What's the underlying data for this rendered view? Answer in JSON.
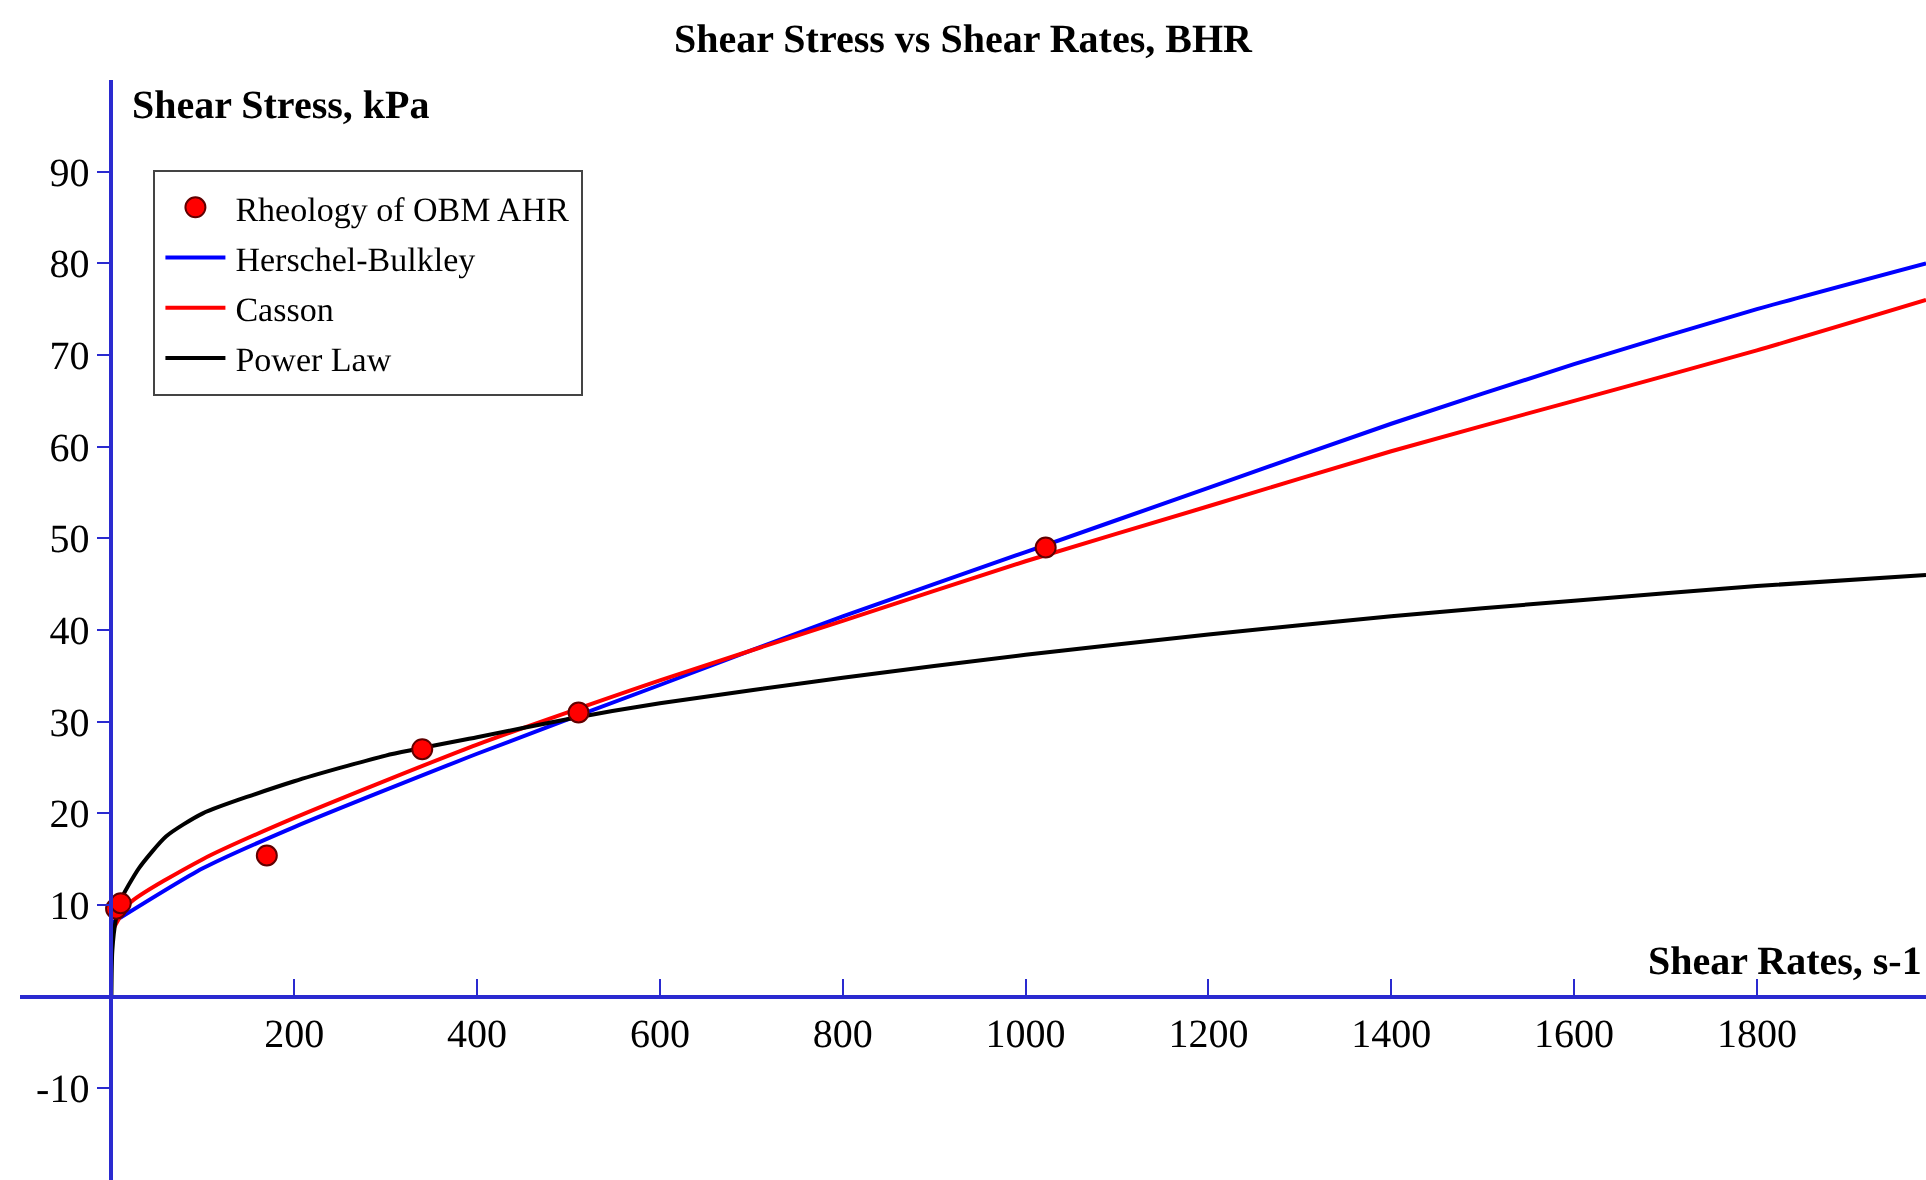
{
  "chart_data": {
    "type": "line",
    "title": "Shear Stress vs Shear Rates, BHR",
    "xlabel": "Shear Rates, s-1",
    "ylabel": "Shear Stress, kPa",
    "xlim": [
      -100,
      1985
    ],
    "ylim": [
      -20,
      100
    ],
    "xticks": [
      200,
      400,
      600,
      800,
      1000,
      1200,
      1400,
      1600,
      1800
    ],
    "yticks": [
      -10,
      10,
      20,
      30,
      40,
      50,
      60,
      70,
      80,
      90
    ],
    "legend": "top left",
    "series": [
      {
        "name": "Rheology of OBM AHR",
        "type": "scatter",
        "marker": "circle",
        "color": "#ff0000",
        "x": [
          5.1,
          10.2,
          170,
          340,
          511,
          1022
        ],
        "values": [
          9.6,
          10.2,
          15.4,
          27,
          31,
          49
        ]
      },
      {
        "name": "Herschel-Bulkley",
        "color": "#0000ff",
        "x": [
          0,
          100,
          200,
          400,
          600,
          800,
          1000,
          1200,
          1400,
          1600,
          1800,
          1985
        ],
        "values": [
          8,
          14,
          18.5,
          26.5,
          34,
          41.5,
          48.5,
          55.5,
          62.5,
          69,
          75,
          80
        ]
      },
      {
        "name": "Casson",
        "color": "#ff0000",
        "x": [
          0,
          20,
          100,
          200,
          400,
          600,
          800,
          1000,
          1200,
          1400,
          1600,
          1800,
          1985
        ],
        "values": [
          7,
          10.2,
          15,
          19.5,
          27.5,
          34.5,
          41,
          47.5,
          53.5,
          59.5,
          65,
          70.5,
          76
        ]
      },
      {
        "name": "Power Law",
        "color": "#000000",
        "x": [
          0,
          1,
          5,
          10,
          30,
          60,
          100,
          200,
          300,
          400,
          500,
          600,
          800,
          1000,
          1200,
          1400,
          1600,
          1800,
          1985
        ],
        "values": [
          0,
          5,
          8.5,
          10.5,
          14,
          17.5,
          20,
          23.5,
          26.3,
          28.3,
          30.3,
          32,
          34.8,
          37.3,
          39.5,
          41.5,
          43.2,
          44.8,
          46
        ]
      }
    ]
  }
}
